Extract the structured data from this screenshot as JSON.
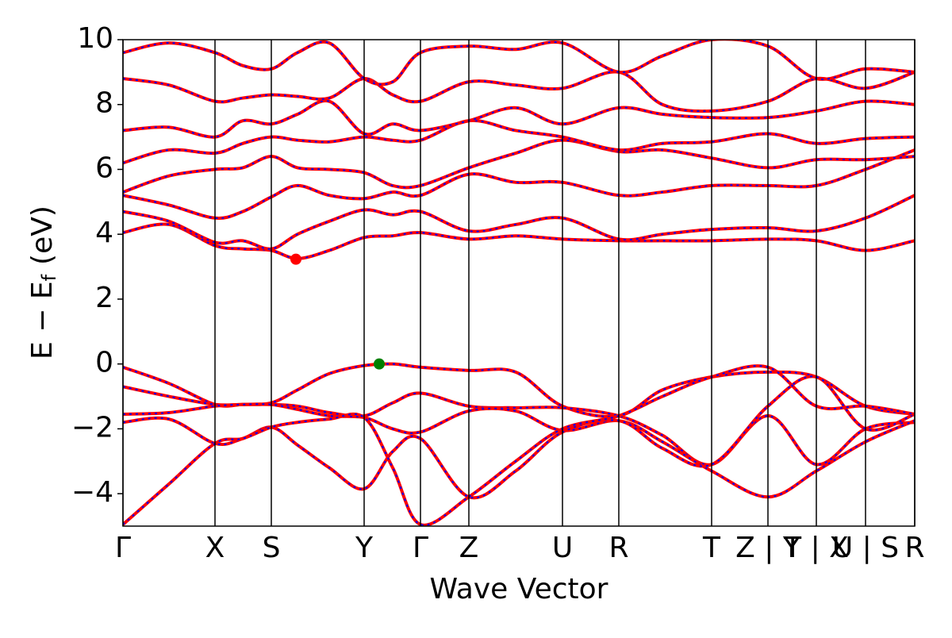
{
  "chart_data": {
    "type": "line",
    "xlabel": "Wave Vector",
    "ylabel": {
      "main": "E − E",
      "subscript": "f",
      "unit": "(eV)"
    },
    "xlim": [
      0,
      9.98
    ],
    "ylim": [
      -5,
      10
    ],
    "xticks": [
      {
        "value": 0,
        "label": "Γ"
      },
      {
        "value": 1.16,
        "label": "X"
      },
      {
        "value": 1.87,
        "label": "S"
      },
      {
        "value": 3.04,
        "label": "Y"
      },
      {
        "value": 3.75,
        "label": "Γ"
      },
      {
        "value": 4.36,
        "label": "Z"
      },
      {
        "value": 5.54,
        "label": "U"
      },
      {
        "value": 6.25,
        "label": "R"
      },
      {
        "value": 7.42,
        "label": "T"
      },
      {
        "value": 8.13,
        "label": "Z | Y"
      },
      {
        "value": 8.74,
        "label": "T | X"
      },
      {
        "value": 9.36,
        "label": "U | S"
      },
      {
        "value": 9.98,
        "label": "R"
      }
    ],
    "yticks": [
      {
        "value": -4,
        "label": "−4"
      },
      {
        "value": -2,
        "label": "−2"
      },
      0,
      2,
      4,
      6,
      8,
      10
    ],
    "dash_color": "blue",
    "x": [
      0,
      0.58,
      1.16,
      1.51,
      1.87,
      2.2,
      2.6,
      3.04,
      3.4,
      3.75,
      4.36,
      4.95,
      5.54,
      6.25,
      6.8,
      7.42,
      8.13,
      8.74,
      9.36,
      9.98
    ],
    "series": [
      {
        "color": "red",
        "values": [
          -0.1,
          -0.6,
          -1.25,
          -1.25,
          -1.2,
          -0.8,
          -0.3,
          -0.05,
          0,
          -0.1,
          -0.2,
          -0.25,
          -1.3,
          -1.6,
          -0.8,
          -0.4,
          -0.25,
          -0.4,
          -1.3,
          -1.55
        ]
      },
      {
        "color": "red",
        "values": [
          -0.7,
          -1.0,
          -1.25,
          -1.25,
          -1.25,
          -1.3,
          -1.5,
          -1.6,
          -1.2,
          -0.9,
          -1.3,
          -1.35,
          -1.35,
          -1.6,
          -2.2,
          -3.1,
          -1.6,
          -3.1,
          -2.0,
          -1.8
        ]
      },
      {
        "color": "red",
        "values": [
          -1.55,
          -1.5,
          -1.3,
          -1.25,
          -1.25,
          -1.4,
          -1.6,
          -1.65,
          -2.0,
          -2.1,
          -1.45,
          -1.45,
          -2.05,
          -1.75,
          -2.4,
          -3.3,
          -4.1,
          -3.3,
          -2.4,
          -1.75
        ]
      },
      {
        "color": "red",
        "values": [
          -1.8,
          -1.7,
          -2.45,
          -2.3,
          -1.95,
          -2.5,
          -3.2,
          -3.85,
          -2.7,
          -2.3,
          -4.1,
          -3.3,
          -2.1,
          -1.75,
          -2.6,
          -3.1,
          -1.3,
          -0.4,
          -2.0,
          -1.55
        ]
      },
      {
        "color": "red",
        "values": [
          -4.95,
          -3.7,
          -2.45,
          -2.3,
          -1.95,
          -1.8,
          -1.7,
          -1.65,
          -3.2,
          -4.95,
          -4.1,
          -3.0,
          -2.0,
          -1.6,
          -1.0,
          -0.4,
          -0.1,
          -1.3,
          -1.3,
          -1.55
        ]
      },
      {
        "color": "red",
        "values": [
          4.05,
          4.3,
          3.65,
          3.55,
          3.5,
          3.25,
          3.5,
          3.9,
          3.95,
          4.05,
          3.85,
          3.95,
          3.85,
          3.8,
          3.8,
          3.8,
          3.85,
          3.8,
          3.5,
          3.8
        ]
      },
      {
        "color": "red",
        "values": [
          4.7,
          4.4,
          3.75,
          3.8,
          3.55,
          4.0,
          4.4,
          4.75,
          4.6,
          4.7,
          4.1,
          4.3,
          4.5,
          3.85,
          4.0,
          4.15,
          4.2,
          4.1,
          4.5,
          5.2
        ]
      },
      {
        "color": "red",
        "values": [
          5.2,
          4.9,
          4.5,
          4.7,
          5.15,
          5.5,
          5.2,
          5.1,
          5.3,
          5.2,
          5.85,
          5.6,
          5.6,
          5.2,
          5.3,
          5.5,
          5.5,
          5.5,
          6.0,
          6.6
        ]
      },
      {
        "color": "red",
        "values": [
          5.3,
          5.8,
          6.0,
          6.05,
          6.4,
          6.05,
          6.0,
          5.9,
          5.5,
          5.5,
          6.05,
          6.5,
          6.9,
          6.55,
          6.6,
          6.35,
          6.05,
          6.3,
          6.3,
          6.4
        ]
      },
      {
        "color": "red",
        "values": [
          6.2,
          6.6,
          6.5,
          6.8,
          7.0,
          6.9,
          6.85,
          7.0,
          6.9,
          6.9,
          7.5,
          7.2,
          7.0,
          6.6,
          6.8,
          6.85,
          7.1,
          6.8,
          6.95,
          7.0
        ]
      },
      {
        "color": "red",
        "values": [
          7.2,
          7.3,
          7.0,
          7.5,
          7.4,
          7.7,
          8.1,
          7.1,
          7.4,
          7.2,
          7.5,
          7.9,
          7.4,
          7.9,
          7.7,
          7.6,
          7.6,
          7.8,
          8.1,
          8.0
        ]
      },
      {
        "color": "red",
        "values": [
          8.8,
          8.6,
          8.1,
          8.2,
          8.3,
          8.25,
          8.2,
          8.8,
          8.3,
          8.1,
          8.7,
          8.6,
          8.5,
          9.0,
          8.0,
          7.8,
          8.1,
          8.8,
          8.5,
          9.0
        ]
      },
      {
        "color": "red",
        "values": [
          9.6,
          9.9,
          9.6,
          9.2,
          9.1,
          9.6,
          9.9,
          8.8,
          8.7,
          9.6,
          9.8,
          9.7,
          9.9,
          9.0,
          9.5,
          10.0,
          9.8,
          8.8,
          9.1,
          9.0
        ]
      }
    ],
    "cbm": {
      "x": 2.18,
      "y": 3.23,
      "color": "red"
    },
    "vbm": {
      "x": 3.23,
      "y": 0,
      "color": "green"
    }
  }
}
